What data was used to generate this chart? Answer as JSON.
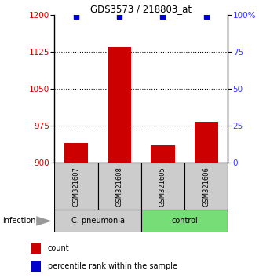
{
  "title": "GDS3573 / 218803_at",
  "samples": [
    "GSM321607",
    "GSM321608",
    "GSM321605",
    "GSM321606"
  ],
  "count_values": [
    940,
    1135,
    935,
    983
  ],
  "percentile_values": [
    99,
    99,
    99,
    99
  ],
  "bar_color": "#cc0000",
  "dot_color": "#0000cc",
  "ylim_left": [
    900,
    1200
  ],
  "yticks_left": [
    900,
    975,
    1050,
    1125,
    1200
  ],
  "ylim_right": [
    0,
    100
  ],
  "yticks_right": [
    0,
    25,
    50,
    75,
    100
  ],
  "ytick_labels_right": [
    "0",
    "25",
    "50",
    "75",
    "100%"
  ],
  "dotted_lines": [
    975,
    1050,
    1125
  ],
  "groups": [
    {
      "label": "C. pneumonia",
      "color": "#cccccc",
      "indices": [
        0,
        1
      ]
    },
    {
      "label": "control",
      "color": "#77dd77",
      "indices": [
        2,
        3
      ]
    }
  ],
  "infection_label": "infection",
  "legend_count_label": "count",
  "legend_percentile_label": "percentile rank within the sample",
  "left_axis_color": "#cc0000",
  "right_axis_color": "#3333ff",
  "bar_width": 0.55,
  "baseline": 900,
  "background_color": "#ffffff"
}
